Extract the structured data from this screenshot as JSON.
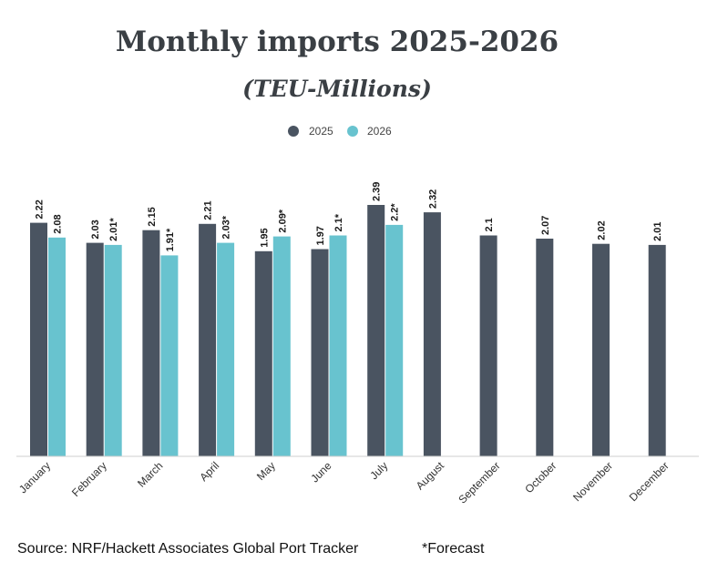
{
  "chart_data": {
    "type": "bar",
    "title": "Monthly imports 2025-2026",
    "subtitle": "(TEU-Millions)",
    "categories": [
      "January",
      "February",
      "March",
      "April",
      "May",
      "June",
      "July",
      "August",
      "September",
      "October",
      "November",
      "December"
    ],
    "series": [
      {
        "name": "2025",
        "color": "#4a5461",
        "values": [
          2.22,
          2.03,
          2.15,
          2.21,
          1.95,
          1.97,
          2.39,
          2.32,
          2.1,
          2.07,
          2.02,
          2.01
        ],
        "labels": [
          "2.22",
          "2.03",
          "2.15",
          "2.21",
          "1.95",
          "1.97",
          "2.39",
          "2.32",
          "2.1",
          "2.07",
          "2.02",
          "2.01"
        ]
      },
      {
        "name": "2026",
        "color": "#68c3cf",
        "values": [
          2.08,
          2.01,
          1.91,
          2.03,
          2.09,
          2.1,
          2.2,
          null,
          null,
          null,
          null,
          null
        ],
        "labels": [
          "2.08",
          "2.01*",
          "1.91*",
          "2.03*",
          "2.09*",
          "2.1*",
          "2.2*",
          null,
          null,
          null,
          null,
          null
        ]
      }
    ],
    "ylim": [
      0,
      2.39
    ],
    "grid": false,
    "legend": "top-center"
  },
  "footer": {
    "source": "Source: NRF/Hackett Associates Global Port Tracker",
    "note": "*Forecast"
  }
}
